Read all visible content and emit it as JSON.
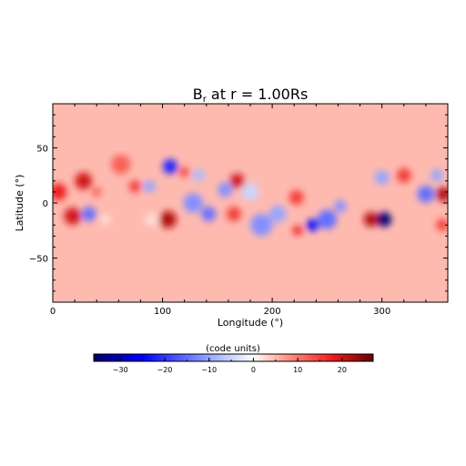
{
  "chart_data": {
    "type": "heatmap",
    "title": "B",
    "title_sub": "r",
    "title_rest": " at r = 1.00Rs",
    "xlabel": "Longitude (°)",
    "ylabel": "Latitude (°)",
    "xlim": [
      0,
      360
    ],
    "ylim": [
      -90,
      90
    ],
    "x_ticks": [
      0,
      100,
      200,
      300
    ],
    "y_ticks": [
      50,
      0,
      -50
    ],
    "x_tick_labels": [
      "0",
      "100",
      "200",
      "300"
    ],
    "y_tick_labels": [
      "50",
      "0",
      "−50"
    ],
    "background_value": 5,
    "features": [
      {
        "lon": 5,
        "lat": 10,
        "r": 7,
        "value": 18
      },
      {
        "lon": 28,
        "lat": 20,
        "r": 7,
        "value": 20
      },
      {
        "lon": 40,
        "lat": 10,
        "r": 4,
        "value": 12
      },
      {
        "lon": 18,
        "lat": -12,
        "r": 7,
        "value": 20
      },
      {
        "lon": 33,
        "lat": -10,
        "r": 6,
        "value": -15
      },
      {
        "lon": 48,
        "lat": -15,
        "r": 4,
        "value": 2
      },
      {
        "lon": 75,
        "lat": 15,
        "r": 5,
        "value": 15
      },
      {
        "lon": 88,
        "lat": 15,
        "r": 5,
        "value": -10
      },
      {
        "lon": 62,
        "lat": 35,
        "r": 8,
        "value": 12
      },
      {
        "lon": 90,
        "lat": -15,
        "r": 5,
        "value": 2
      },
      {
        "lon": 105,
        "lat": -15,
        "r": 7,
        "value": 22
      },
      {
        "lon": 107,
        "lat": 33,
        "r": 6,
        "value": -22
      },
      {
        "lon": 120,
        "lat": 28,
        "r": 4,
        "value": 15
      },
      {
        "lon": 133,
        "lat": 25,
        "r": 5,
        "value": -8
      },
      {
        "lon": 128,
        "lat": 0,
        "r": 8,
        "value": -12
      },
      {
        "lon": 142,
        "lat": -10,
        "r": 6,
        "value": -15
      },
      {
        "lon": 157,
        "lat": 12,
        "r": 6,
        "value": -12
      },
      {
        "lon": 168,
        "lat": 20,
        "r": 6,
        "value": 20
      },
      {
        "lon": 165,
        "lat": -10,
        "r": 6,
        "value": 15
      },
      {
        "lon": 180,
        "lat": 10,
        "r": 7,
        "value": -5
      },
      {
        "lon": 190,
        "lat": -20,
        "r": 9,
        "value": -12
      },
      {
        "lon": 205,
        "lat": -10,
        "r": 7,
        "value": -10
      },
      {
        "lon": 222,
        "lat": 5,
        "r": 6,
        "value": 15
      },
      {
        "lon": 223,
        "lat": -25,
        "r": 4,
        "value": 18
      },
      {
        "lon": 237,
        "lat": -20,
        "r": 5,
        "value": -25
      },
      {
        "lon": 250,
        "lat": -15,
        "r": 8,
        "value": -15
      },
      {
        "lon": 262,
        "lat": -3,
        "r": 5,
        "value": -12
      },
      {
        "lon": 290,
        "lat": -15,
        "r": 6,
        "value": 22
      },
      {
        "lon": 302,
        "lat": -15,
        "r": 6,
        "value": -35
      },
      {
        "lon": 300,
        "lat": 23,
        "r": 6,
        "value": -10
      },
      {
        "lon": 320,
        "lat": 25,
        "r": 6,
        "value": 15
      },
      {
        "lon": 340,
        "lat": 8,
        "r": 7,
        "value": -15
      },
      {
        "lon": 350,
        "lat": 25,
        "r": 5,
        "value": -10
      },
      {
        "lon": 356,
        "lat": 8,
        "r": 6,
        "value": 22
      },
      {
        "lon": 355,
        "lat": -20,
        "r": 5,
        "value": 15
      }
    ],
    "colorbar": {
      "label": "(code units)",
      "vmin": -36,
      "vmax": 27,
      "ticks": [
        -30,
        -20,
        -10,
        0,
        10,
        20
      ],
      "tick_labels": [
        "−30",
        "−20",
        "−10",
        "0",
        "10",
        "20"
      ],
      "colors": [
        {
          "value": -36,
          "color": "#000066"
        },
        {
          "value": -25,
          "color": "#0000ff"
        },
        {
          "value": -8,
          "color": "#aabbff"
        },
        {
          "value": 0,
          "color": "#ffffff"
        },
        {
          "value": 8,
          "color": "#ff9080"
        },
        {
          "value": 18,
          "color": "#ee1a1a"
        },
        {
          "value": 27,
          "color": "#660000"
        }
      ]
    }
  }
}
